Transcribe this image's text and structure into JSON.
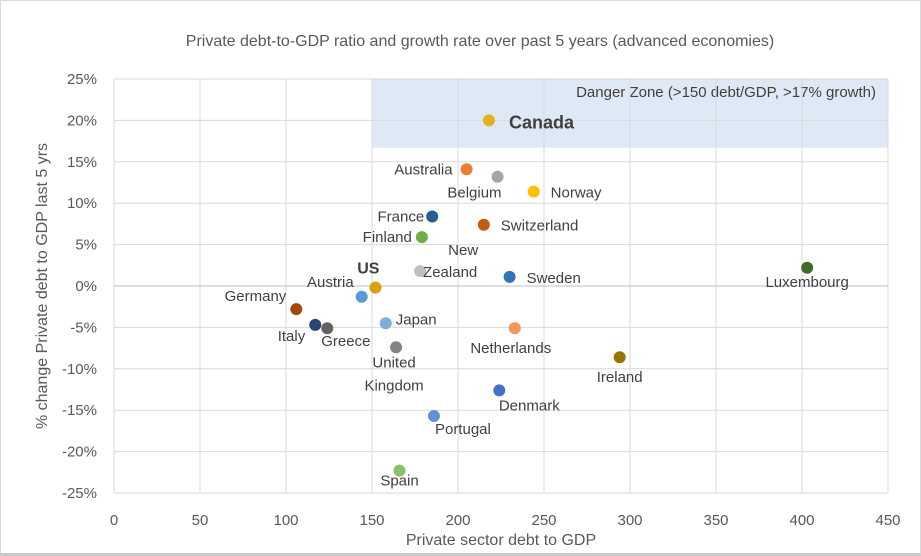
{
  "chart_data": {
    "type": "scatter",
    "title": "Private debt-to-GDP ratio and growth rate over past 5 years (advanced economies)",
    "xlabel": "Private sector debt to GDP",
    "ylabel": "% change Private debt to GDP last 5 yrs",
    "xlim": [
      0,
      450
    ],
    "ylim": [
      -25,
      25
    ],
    "xticks": [
      "0",
      "50",
      "100",
      "150",
      "200",
      "250",
      "300",
      "350",
      "400",
      "450"
    ],
    "yticks": [
      "25%",
      "20%",
      "15%",
      "10%",
      "5%",
      "0%",
      "-5%",
      "-10%",
      "-15%",
      "-20%",
      "-25%"
    ],
    "grid": true,
    "legend": "none",
    "annotation": {
      "text": "Danger Zone (>150 debt/GDP, >17% growth)",
      "region": {
        "x_min": 150,
        "x_max": 450,
        "y_min": 16.7,
        "y_max": 25
      },
      "color": "#dfe9f5"
    },
    "points": [
      {
        "name": "Canada",
        "x": 218,
        "y": 20.0,
        "color": "#e2b11f",
        "bold": true
      },
      {
        "name": "Australia",
        "x": 205,
        "y": 14.1,
        "color": "#ed7d31"
      },
      {
        "name": "Belgium",
        "x": 223,
        "y": 13.2,
        "color": "#a5a5a5"
      },
      {
        "name": "Norway",
        "x": 244,
        "y": 11.4,
        "color": "#ffc000"
      },
      {
        "name": "France",
        "x": 185,
        "y": 8.4,
        "color": "#255e91"
      },
      {
        "name": "Switzerland",
        "x": 215,
        "y": 7.4,
        "color": "#c55a11"
      },
      {
        "name": "Finland",
        "x": 179,
        "y": 5.9,
        "color": "#70ad47"
      },
      {
        "name": "New Zealand",
        "x": 178,
        "y": 1.8,
        "color": "#bfbfbf"
      },
      {
        "name": "Sweden",
        "x": 230,
        "y": 1.1,
        "color": "#2e75b6"
      },
      {
        "name": "US",
        "x": 152,
        "y": -0.2,
        "color": "#d8a208",
        "bold": true
      },
      {
        "name": "Austria",
        "x": 144,
        "y": -1.3,
        "color": "#5b9bd5"
      },
      {
        "name": "Germany",
        "x": 106,
        "y": -2.8,
        "color": "#a5470c"
      },
      {
        "name": "Italy",
        "x": 117,
        "y": -4.7,
        "color": "#264478"
      },
      {
        "name": "Greece",
        "x": 124,
        "y": -5.1,
        "color": "#636363"
      },
      {
        "name": "Japan",
        "x": 158,
        "y": -4.5,
        "color": "#7cafdd"
      },
      {
        "name": "United Kingdom",
        "x": 164,
        "y": -7.4,
        "color": "#848484"
      },
      {
        "name": "Netherlands",
        "x": 233,
        "y": -5.1,
        "color": "#f1975a"
      },
      {
        "name": "Ireland",
        "x": 294,
        "y": -8.6,
        "color": "#997300"
      },
      {
        "name": "Denmark",
        "x": 224,
        "y": -12.6,
        "color": "#4472c4"
      },
      {
        "name": "Portugal",
        "x": 186,
        "y": -15.7,
        "color": "#698ed0"
      },
      {
        "name": "Spain",
        "x": 166,
        "y": -22.3,
        "color": "#8cc168"
      },
      {
        "name": "Luxembourg",
        "x": 403,
        "y": 2.2,
        "color": "#43682b"
      }
    ]
  }
}
